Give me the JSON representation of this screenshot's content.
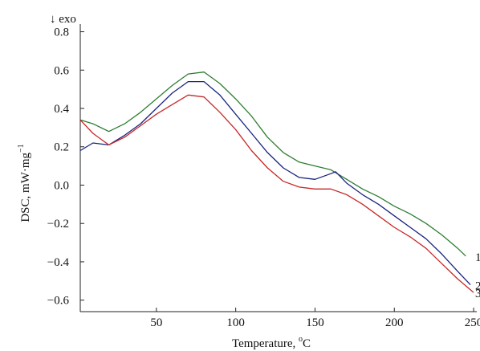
{
  "chart_data": {
    "type": "line",
    "title": "",
    "xlabel": "Temperature, ",
    "xlabel_unit": "oC",
    "ylabel": "DSC, mW·mg",
    "ylabel_exponent": "−1",
    "annotation": "↓ exo",
    "xlim": [
      2,
      252
    ],
    "ylim": [
      -0.66,
      0.84
    ],
    "x_ticks": [
      50,
      100,
      150,
      200,
      250
    ],
    "x_tick_labels": [
      "50",
      "100",
      "150",
      "200",
      "250"
    ],
    "y_ticks": [
      0.8,
      0.6,
      0.4,
      0.2,
      0.0,
      -0.2,
      -0.4,
      -0.6
    ],
    "y_tick_labels": [
      "0.8",
      "0.6",
      "0.4",
      "0.2",
      "0.0",
      "−0.2",
      "−0.4",
      "−0.6"
    ],
    "grid": false,
    "legend": "none",
    "series": [
      {
        "label": "1",
        "color": "#2e7d32",
        "x": [
          2,
          10,
          20,
          30,
          40,
          50,
          60,
          70,
          80,
          90,
          100,
          110,
          120,
          130,
          140,
          150,
          160,
          170,
          180,
          190,
          200,
          210,
          220,
          230,
          240,
          245
        ],
        "y": [
          0.34,
          0.32,
          0.28,
          0.32,
          0.38,
          0.45,
          0.52,
          0.58,
          0.59,
          0.53,
          0.45,
          0.36,
          0.25,
          0.17,
          0.12,
          0.1,
          0.08,
          0.03,
          -0.02,
          -0.06,
          -0.11,
          -0.15,
          -0.2,
          -0.26,
          -0.33,
          -0.37
        ]
      },
      {
        "label": "2",
        "color": "#1a237e",
        "x": [
          2,
          10,
          20,
          30,
          40,
          50,
          60,
          70,
          80,
          90,
          100,
          110,
          120,
          130,
          140,
          150,
          160,
          163,
          170,
          180,
          190,
          200,
          210,
          220,
          230,
          240,
          248
        ],
        "y": [
          0.18,
          0.22,
          0.21,
          0.26,
          0.32,
          0.4,
          0.48,
          0.54,
          0.54,
          0.47,
          0.37,
          0.27,
          0.17,
          0.09,
          0.04,
          0.03,
          0.06,
          0.07,
          0.01,
          -0.05,
          -0.1,
          -0.16,
          -0.22,
          -0.28,
          -0.36,
          -0.45,
          -0.52
        ]
      },
      {
        "label": "3",
        "color": "#c62828",
        "x": [
          2,
          10,
          20,
          30,
          40,
          50,
          60,
          70,
          80,
          90,
          100,
          110,
          120,
          130,
          140,
          150,
          160,
          170,
          180,
          190,
          200,
          210,
          220,
          230,
          240,
          250
        ],
        "y": [
          0.34,
          0.27,
          0.21,
          0.25,
          0.31,
          0.37,
          0.42,
          0.47,
          0.46,
          0.38,
          0.29,
          0.18,
          0.09,
          0.02,
          -0.01,
          -0.02,
          -0.02,
          -0.05,
          -0.1,
          -0.16,
          -0.22,
          -0.27,
          -0.33,
          -0.41,
          -0.49,
          -0.56
        ]
      }
    ]
  }
}
